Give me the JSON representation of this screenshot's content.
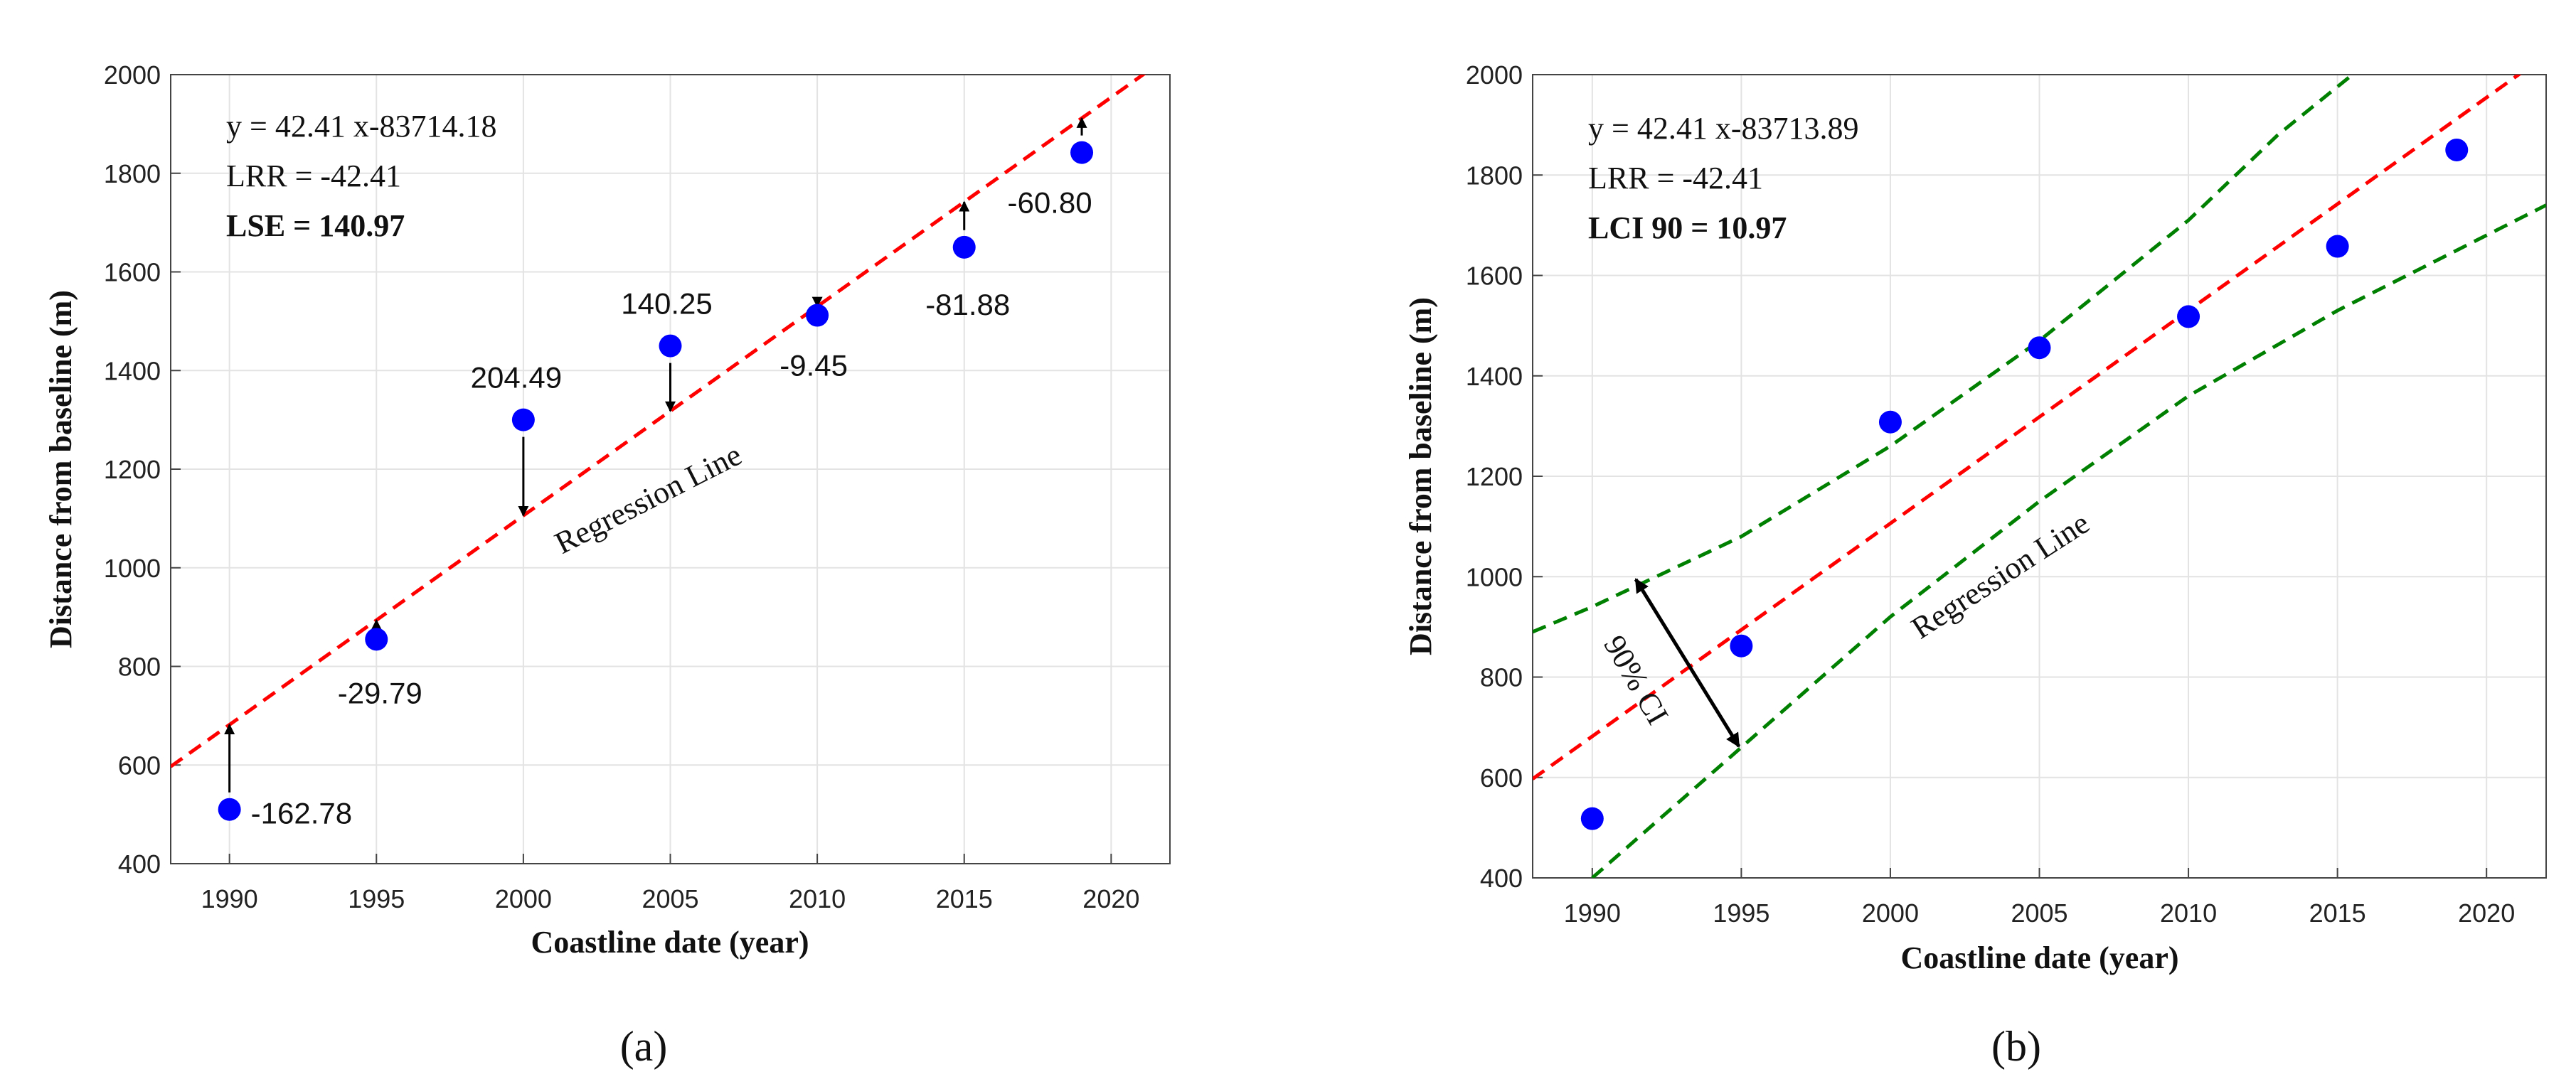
{
  "chart_data": [
    {
      "type": "scatter",
      "xlabel": "Coastline date (year)",
      "ylabel": "Distance from baseline (m)",
      "xlim": [
        1988,
        2022
      ],
      "ylim": [
        400,
        2000
      ],
      "xticks": [
        1990,
        1995,
        2000,
        2005,
        2010,
        2015,
        2020
      ],
      "yticks": [
        400,
        600,
        800,
        1000,
        1200,
        1400,
        1600,
        1800,
        2000
      ],
      "grid": true,
      "series": [
        {
          "name": "Coastline positions",
          "color": "#0000ff",
          "x": [
            1990,
            1995,
            2000,
            2005,
            2010,
            2015,
            2019
          ],
          "y": [
            510,
            855,
            1300,
            1450,
            1512,
            1650,
            1842
          ]
        }
      ],
      "regression": {
        "slope": 42.41,
        "intercept": -83714.18,
        "color": "#ff0000",
        "label": "Regression Line"
      },
      "residuals": [
        {
          "x": 1990,
          "label": "-162.78"
        },
        {
          "x": 1995,
          "label": "-29.79"
        },
        {
          "x": 2000,
          "label": "204.49"
        },
        {
          "x": 2005,
          "label": "140.25"
        },
        {
          "x": 2010,
          "label": "-9.45"
        },
        {
          "x": 2015,
          "label": "-81.88"
        },
        {
          "x": 2019,
          "label": "-60.80"
        }
      ],
      "annotations": [
        "y = 42.41 x-83714.18",
        "LRR = -42.41",
        "LSE = 140.97"
      ],
      "caption": "(a)"
    },
    {
      "type": "scatter",
      "xlabel": "Coastline date (year)",
      "ylabel": "Distance from baseline (m)",
      "xlim": [
        1988,
        2022
      ],
      "ylim": [
        400,
        2000
      ],
      "xticks": [
        1990,
        1995,
        2000,
        2005,
        2010,
        2015,
        2020
      ],
      "yticks": [
        400,
        600,
        800,
        1000,
        1200,
        1400,
        1600,
        1800,
        2000
      ],
      "grid": true,
      "series": [
        {
          "name": "Coastline positions",
          "color": "#0000ff",
          "x": [
            1990,
            1995,
            2000,
            2005,
            2010,
            2015,
            2019
          ],
          "y": [
            518,
            862,
            1308,
            1456,
            1518,
            1658,
            1850
          ]
        }
      ],
      "regression": {
        "slope": 42.41,
        "intercept": -83713.89,
        "color": "#ff0000",
        "label": "Regression Line"
      },
      "confidence_band": {
        "color": "#008000",
        "upper": [
          [
            1988,
            890
          ],
          [
            1990,
            940
          ],
          [
            1995,
            1080
          ],
          [
            2000,
            1260
          ],
          [
            2005,
            1470
          ],
          [
            2010,
            1710
          ],
          [
            2013,
            1880
          ],
          [
            2015.5,
            2000
          ]
        ],
        "lower": [
          [
            1990,
            400
          ],
          [
            1995,
            660
          ],
          [
            2000,
            920
          ],
          [
            2005,
            1150
          ],
          [
            2010,
            1360
          ],
          [
            2015,
            1530
          ],
          [
            2020,
            1680
          ],
          [
            2022,
            1740
          ]
        ],
        "label": "90% CI"
      },
      "annotations": [
        "y = 42.41 x-83713.89",
        "LRR = -42.41",
        "LCI 90 = 10.97"
      ],
      "caption": "(b)"
    }
  ]
}
